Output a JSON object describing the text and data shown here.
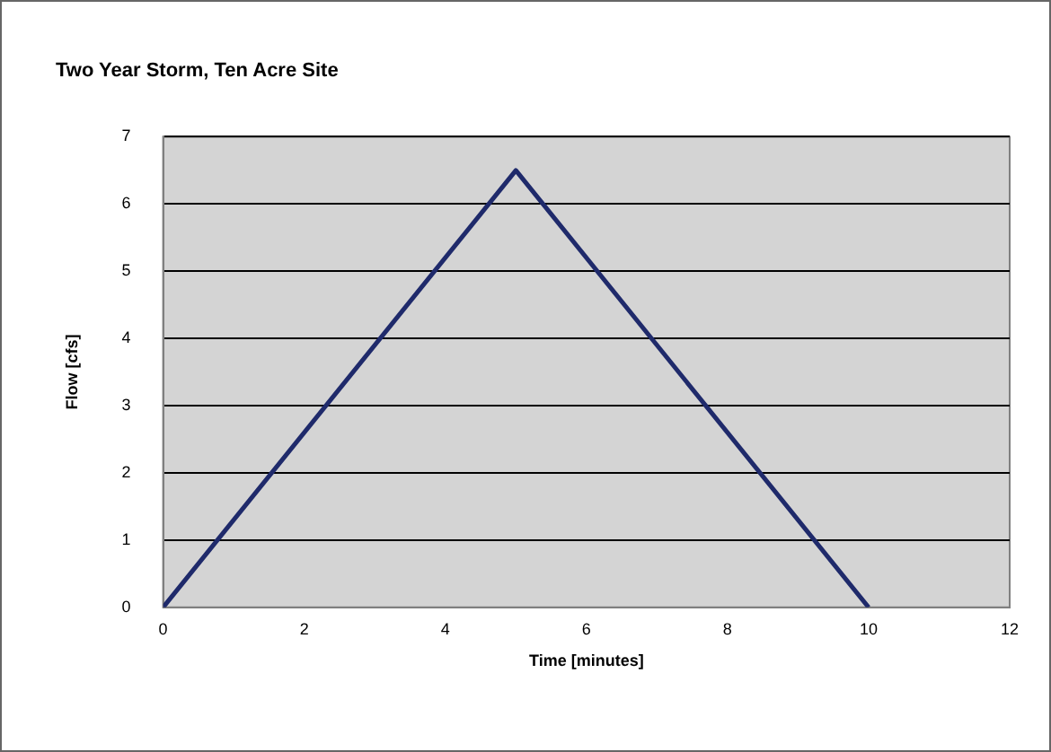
{
  "chart_data": {
    "type": "line",
    "title": "Two Year Storm, Ten Acre Site",
    "xlabel": "Time [minutes]",
    "ylabel": "Flow [cfs]",
    "x": [
      0,
      5,
      10
    ],
    "series": [
      {
        "color": "#1f2a6b",
        "values": [
          0,
          6.5,
          0
        ]
      }
    ],
    "xlim": [
      0,
      12
    ],
    "xticks": [
      0,
      2,
      4,
      6,
      8,
      10,
      12
    ],
    "ylim": [
      0,
      7
    ],
    "yticks": [
      0,
      1,
      2,
      3,
      4,
      5,
      6,
      7
    ],
    "grid": "y",
    "legend": false,
    "marker": "none",
    "line_style": "solid"
  }
}
